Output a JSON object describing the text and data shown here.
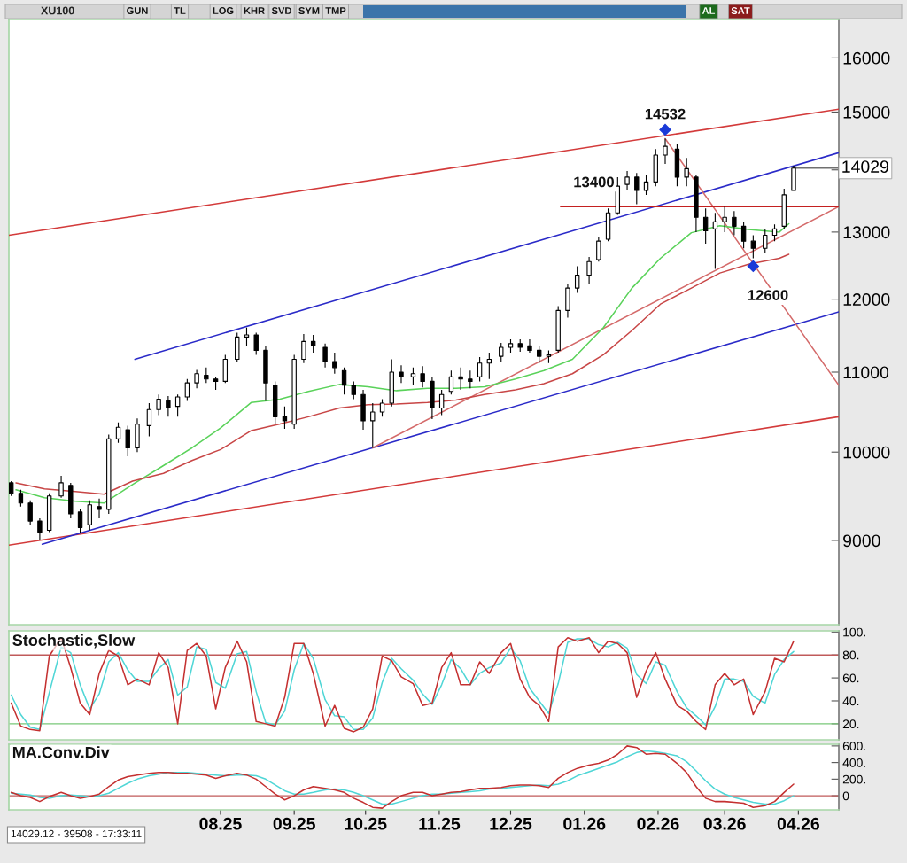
{
  "chart_data": [
    {
      "type": "candlestick",
      "title": "XU100",
      "log": true,
      "tick_labels": "y",
      "color": "#000000",
      "x": [
        "2025-05-19",
        "2025-05-23",
        "2025-05-27",
        "2025-05-31",
        "2025-06-04",
        "2025-06-09",
        "2025-06-13",
        "2025-06-17",
        "2025-06-21",
        "2025-06-25",
        "2025-06-29",
        "2025-07-03",
        "2025-07-07",
        "2025-07-11",
        "2025-07-16",
        "2025-07-20",
        "2025-07-24",
        "2025-07-28",
        "2025-08-01",
        "2025-08-05",
        "2025-08-09",
        "2025-08-13",
        "2025-08-17",
        "2025-08-22",
        "2025-08-26",
        "2025-08-30",
        "2025-09-03",
        "2025-09-07",
        "2025-09-11",
        "2025-09-15",
        "2025-09-19",
        "2025-09-23",
        "2025-09-28",
        "2025-10-02",
        "2025-10-06",
        "2025-10-10",
        "2025-10-14",
        "2025-10-18",
        "2025-10-22",
        "2025-10-26",
        "2025-10-30",
        "2025-11-04",
        "2025-11-08",
        "2025-11-12",
        "2025-11-16",
        "2025-11-20",
        "2025-11-24",
        "2025-11-28",
        "2025-12-02",
        "2025-12-06",
        "2025-12-11",
        "2025-12-15",
        "2025-12-19",
        "2025-12-23",
        "2025-12-27",
        "2025-12-31",
        "2026-01-04",
        "2026-01-08",
        "2026-01-12",
        "2026-01-17",
        "2026-01-21",
        "2026-01-25",
        "2026-01-29",
        "2026-02-02",
        "2026-02-06",
        "2026-02-10",
        "2026-02-14",
        "2026-02-18",
        "2026-02-23",
        "2026-02-27",
        "2026-03-03",
        "2026-03-07",
        "2026-03-11",
        "2026-03-15",
        "2026-03-19",
        "2026-03-23",
        "2026-03-27",
        "2026-04-01",
        "2026-04-05",
        "2026-04-09",
        "2026-04-13"
      ],
      "ohlc": [
        [
          9640,
          9660,
          9490,
          9520
        ],
        [
          9520,
          9560,
          9370,
          9410
        ],
        [
          9410,
          9440,
          9170,
          9210
        ],
        [
          9210,
          9240,
          9000,
          9090
        ],
        [
          9110,
          9520,
          9090,
          9490
        ],
        [
          9490,
          9720,
          9470,
          9640
        ],
        [
          9610,
          9640,
          9240,
          9290
        ],
        [
          9310,
          9340,
          9080,
          9140
        ],
        [
          9170,
          9440,
          9110,
          9390
        ],
        [
          9370,
          9460,
          9240,
          9340
        ],
        [
          9340,
          10210,
          9290,
          10160
        ],
        [
          10160,
          10360,
          10110,
          10300
        ],
        [
          10270,
          10320,
          9950,
          10050
        ],
        [
          10050,
          10410,
          10000,
          10340
        ],
        [
          10320,
          10600,
          10190,
          10520
        ],
        [
          10520,
          10710,
          10450,
          10650
        ],
        [
          10630,
          10690,
          10430,
          10540
        ],
        [
          10560,
          10710,
          10430,
          10680
        ],
        [
          10680,
          10910,
          10630,
          10860
        ],
        [
          10860,
          11030,
          10790,
          10980
        ],
        [
          10960,
          11060,
          10860,
          10910
        ],
        [
          10910,
          10940,
          10770,
          10880
        ],
        [
          10880,
          11230,
          10860,
          11170
        ],
        [
          11170,
          11530,
          11140,
          11470
        ],
        [
          11470,
          11600,
          11350,
          11500
        ],
        [
          11500,
          11530,
          11230,
          11290
        ],
        [
          11290,
          11350,
          10630,
          10860
        ],
        [
          10830,
          10880,
          10340,
          10430
        ],
        [
          10430,
          10560,
          10280,
          10380
        ],
        [
          10340,
          11230,
          10280,
          11170
        ],
        [
          11170,
          11510,
          11120,
          11410
        ],
        [
          11410,
          11500,
          11260,
          11350
        ],
        [
          11330,
          11380,
          11060,
          11140
        ],
        [
          11140,
          11260,
          10980,
          11060
        ],
        [
          11020,
          11060,
          10710,
          10830
        ],
        [
          10830,
          10880,
          10650,
          10710
        ],
        [
          10710,
          10770,
          10270,
          10380
        ],
        [
          10380,
          10600,
          10050,
          10490
        ],
        [
          10490,
          10650,
          10430,
          10600
        ],
        [
          10600,
          11170,
          10560,
          11000
        ],
        [
          11000,
          11090,
          10860,
          10940
        ],
        [
          10940,
          11060,
          10830,
          10980
        ],
        [
          10980,
          11080,
          10800,
          10880
        ],
        [
          10880,
          10940,
          10400,
          10540
        ],
        [
          10540,
          10770,
          10450,
          10710
        ],
        [
          10750,
          11020,
          10710,
          10940
        ],
        [
          10940,
          11060,
          10770,
          10910
        ],
        [
          10910,
          11020,
          10790,
          10880
        ],
        [
          10940,
          11200,
          10880,
          11120
        ],
        [
          11120,
          11260,
          10910,
          11170
        ],
        [
          11210,
          11390,
          11140,
          11330
        ],
        [
          11330,
          11440,
          11260,
          11380
        ],
        [
          11380,
          11440,
          11270,
          11330
        ],
        [
          11350,
          11440,
          11260,
          11290
        ],
        [
          11290,
          11350,
          11120,
          11210
        ],
        [
          11210,
          11290,
          11120,
          11230
        ],
        [
          11290,
          11900,
          11260,
          11840
        ],
        [
          11840,
          12220,
          11740,
          12160
        ],
        [
          12160,
          12480,
          12090,
          12350
        ],
        [
          12350,
          12620,
          12220,
          12550
        ],
        [
          12580,
          12930,
          12550,
          12860
        ],
        [
          12890,
          13370,
          12860,
          13300
        ],
        [
          13300,
          13880,
          13270,
          13730
        ],
        [
          13760,
          13980,
          13660,
          13880
        ],
        [
          13880,
          13950,
          13440,
          13660
        ],
        [
          13660,
          13910,
          13590,
          13800
        ],
        [
          13800,
          14350,
          13730,
          14250
        ],
        [
          14250,
          14532,
          14100,
          14400
        ],
        [
          14350,
          14430,
          13730,
          13880
        ],
        [
          13880,
          14200,
          13730,
          14020
        ],
        [
          13880,
          13910,
          13000,
          13230
        ],
        [
          13230,
          13370,
          12820,
          13020
        ],
        [
          13050,
          13300,
          12440,
          13160
        ],
        [
          13160,
          13400,
          13000,
          13230
        ],
        [
          13230,
          13330,
          12950,
          13090
        ],
        [
          13090,
          13160,
          12750,
          12860
        ],
        [
          12860,
          12950,
          12600,
          12750
        ],
        [
          12750,
          13050,
          12680,
          12950
        ],
        [
          12950,
          13120,
          12860,
          13050
        ],
        [
          13090,
          13690,
          13050,
          13590
        ],
        [
          13660,
          14070,
          13660,
          14029
        ]
      ],
      "series": [
        {
          "type": "line",
          "color": "#d33a3a",
          "x": [
            "2025-05-18",
            "2026-05-02"
          ],
          "values": [
            12950,
            15050
          ]
        },
        {
          "type": "line",
          "color": "#d33a3a",
          "x": [
            "2025-05-18",
            "2026-05-02"
          ],
          "values": [
            8950,
            10430
          ]
        },
        {
          "type": "line",
          "color": "#2a2ac8",
          "x": [
            "2025-06-01",
            "2026-05-02"
          ],
          "values": [
            8960,
            11820
          ]
        },
        {
          "type": "line",
          "color": "#2a2ac8",
          "x": [
            "2025-07-10",
            "2026-05-02"
          ],
          "values": [
            11170,
            14290
          ]
        },
        {
          "type": "line",
          "color": "#d46a6a",
          "x": [
            "2026-02-18",
            "2026-05-02"
          ],
          "values": [
            14532,
            10830
          ]
        },
        {
          "type": "line",
          "color": "#d46a6a",
          "x": [
            "2025-10-18",
            "2026-05-02"
          ],
          "values": [
            10050,
            13400
          ]
        },
        {
          "type": "line",
          "color": "#c42020",
          "x": [
            "2026-01-05",
            "2026-05-02"
          ],
          "values": [
            13400,
            13400
          ]
        },
        {
          "type": "line",
          "color": "#5ad25a",
          "x": [
            "2025-05-21",
            "2025-06-02",
            "2025-06-15",
            "2025-06-27",
            "2025-07-09",
            "2025-07-22",
            "2025-08-03",
            "2025-08-15",
            "2025-08-28",
            "2025-09-09",
            "2025-09-21",
            "2025-10-04",
            "2025-10-16",
            "2025-10-28",
            "2025-11-10",
            "2025-11-22",
            "2025-12-04",
            "2025-12-17",
            "2025-12-29",
            "2026-01-10",
            "2026-01-23",
            "2026-02-04",
            "2026-02-16",
            "2026-03-01",
            "2026-03-13",
            "2026-03-25",
            "2026-04-07",
            "2026-04-11"
          ],
          "values": [
            9560,
            9470,
            9430,
            9410,
            9620,
            9840,
            10050,
            10290,
            10610,
            10650,
            10750,
            10840,
            10810,
            10760,
            10790,
            10790,
            10810,
            10910,
            11020,
            11170,
            11600,
            12160,
            12600,
            12990,
            13100,
            13040,
            13000,
            13130
          ]
        },
        {
          "type": "line",
          "color": "#c84646",
          "x": [
            "2025-05-21",
            "2025-06-02",
            "2025-06-15",
            "2025-06-27",
            "2025-07-09",
            "2025-07-22",
            "2025-08-03",
            "2025-08-15",
            "2025-08-28",
            "2025-09-09",
            "2025-09-21",
            "2025-10-04",
            "2025-10-16",
            "2025-10-28",
            "2025-11-10",
            "2025-11-22",
            "2025-12-04",
            "2025-12-17",
            "2025-12-29",
            "2026-01-10",
            "2026-01-23",
            "2026-02-04",
            "2026-02-16",
            "2026-03-01",
            "2026-03-13",
            "2026-03-25",
            "2026-04-07",
            "2026-04-11"
          ],
          "values": [
            9640,
            9570,
            9540,
            9510,
            9660,
            9750,
            9900,
            10030,
            10260,
            10340,
            10430,
            10540,
            10580,
            10590,
            10610,
            10640,
            10710,
            10770,
            10850,
            10980,
            11230,
            11560,
            11930,
            12160,
            12380,
            12510,
            12600,
            12660
          ]
        }
      ],
      "xlim": [
        "2025-05-18",
        "2026-05-02"
      ],
      "ylim": [
        8140,
        16750
      ],
      "yticks": [
        9000,
        10000,
        11000,
        12000,
        13000,
        {
          "value": 14000,
          "label": null
        },
        15000,
        16000
      ],
      "annotations": [
        "GUN",
        "TL",
        "LOG",
        "KHR",
        "SVD",
        "SYM",
        "TMP",
        "AL",
        "SAT",
        {
          "text": "14532",
          "x": "2026-02-18",
          "y": 14532
        },
        {
          "text": "13400",
          "x": "2026-01-19",
          "y": 13400
        },
        {
          "text": "12600",
          "x": "2026-03-27",
          "y": 12600
        },
        {
          "text": "14029",
          "x": "2026-04-13",
          "y": 14029
        }
      ]
    },
    {
      "type": "line",
      "title": "Stochastic,Slow",
      "tick_labels": "y",
      "x": [
        "2025-05-19",
        "2025-05-23",
        "2025-05-27",
        "2025-05-31",
        "2025-06-04",
        "2025-06-09",
        "2025-06-13",
        "2025-06-17",
        "2025-06-21",
        "2025-06-25",
        "2025-06-29",
        "2025-07-03",
        "2025-07-07",
        "2025-07-11",
        "2025-07-16",
        "2025-07-20",
        "2025-07-24",
        "2025-07-28",
        "2025-08-01",
        "2025-08-05",
        "2025-08-09",
        "2025-08-13",
        "2025-08-17",
        "2025-08-22",
        "2025-08-26",
        "2025-08-30",
        "2025-09-03",
        "2025-09-07",
        "2025-09-11",
        "2025-09-15",
        "2025-09-19",
        "2025-09-23",
        "2025-09-28",
        "2025-10-02",
        "2025-10-06",
        "2025-10-10",
        "2025-10-14",
        "2025-10-18",
        "2025-10-22",
        "2025-10-26",
        "2025-10-30",
        "2025-11-04",
        "2025-11-08",
        "2025-11-12",
        "2025-11-16",
        "2025-11-20",
        "2025-11-24",
        "2025-11-28",
        "2025-12-02",
        "2025-12-06",
        "2025-12-11",
        "2025-12-15",
        "2025-12-19",
        "2025-12-23",
        "2025-12-27",
        "2025-12-31",
        "2026-01-04",
        "2026-01-08",
        "2026-01-12",
        "2026-01-17",
        "2026-01-21",
        "2026-01-25",
        "2026-01-29",
        "2026-02-02",
        "2026-02-06",
        "2026-02-10",
        "2026-02-14",
        "2026-02-18",
        "2026-02-23",
        "2026-02-27",
        "2026-03-03",
        "2026-03-07",
        "2026-03-11",
        "2026-03-15",
        "2026-03-19",
        "2026-03-23",
        "2026-03-27",
        "2026-04-01",
        "2026-04-05",
        "2026-04-09",
        "2026-04-13"
      ],
      "series": [
        {
          "color": "#4fd6d6",
          "values": [
            45,
            28,
            17,
            15,
            47,
            87,
            82,
            54,
            33,
            46,
            74,
            82,
            67,
            57,
            57,
            68,
            76,
            45,
            52,
            87,
            85,
            56,
            51,
            81,
            83,
            48,
            21,
            19,
            31,
            67,
            90,
            77,
            41,
            27,
            26,
            15,
            15,
            25,
            56,
            77,
            68,
            58,
            46,
            37,
            54,
            76,
            68,
            54,
            64,
            69,
            73,
            86,
            75,
            51,
            40,
            29,
            55,
            91,
            94,
            94,
            89,
            87,
            91,
            86,
            63,
            55,
            74,
            71,
            48,
            34,
            27,
            19,
            35,
            59,
            59,
            57,
            44,
            38,
            63,
            76,
            83
          ]
        },
        {
          "color": "#c43030",
          "values": [
            38,
            18,
            15,
            14,
            79,
            95,
            69,
            38,
            28,
            64,
            84,
            79,
            54,
            59,
            54,
            82,
            69,
            20,
            84,
            90,
            79,
            33,
            69,
            92,
            74,
            22,
            20,
            18,
            43,
            90,
            90,
            64,
            18,
            36,
            16,
            13,
            17,
            33,
            79,
            75,
            61,
            55,
            36,
            38,
            69,
            82,
            54,
            54,
            74,
            64,
            82,
            90,
            59,
            43,
            36,
            22,
            87,
            95,
            92,
            95,
            82,
            92,
            90,
            82,
            43,
            66,
            82,
            59,
            36,
            31,
            22,
            15,
            54,
            64,
            54,
            59,
            28,
            48,
            77,
            74,
            92
          ]
        }
      ],
      "xlim": [
        "2025-05-18",
        "2026-05-02"
      ],
      "ylim": [
        6,
        101
      ],
      "yticks": [
        {
          "value": 20,
          "label": "20."
        },
        {
          "value": 40,
          "label": "40."
        },
        {
          "value": 60,
          "label": "60."
        },
        {
          "value": 80,
          "label": "80."
        },
        {
          "value": 100,
          "label": "100."
        }
      ],
      "ref_lines": [
        {
          "axis": "y",
          "value": 80,
          "color": "#c05a5a"
        },
        {
          "axis": "y",
          "value": 20,
          "color": "#78c878"
        }
      ]
    },
    {
      "type": "line",
      "title": "MA.Conv.Div",
      "x": [
        "2025-05-19",
        "2025-05-23",
        "2025-05-27",
        "2025-05-31",
        "2025-06-04",
        "2025-06-09",
        "2025-06-13",
        "2025-06-17",
        "2025-06-21",
        "2025-06-25",
        "2025-06-29",
        "2025-07-03",
        "2025-07-07",
        "2025-07-11",
        "2025-07-16",
        "2025-07-20",
        "2025-07-24",
        "2025-07-28",
        "2025-08-01",
        "2025-08-05",
        "2025-08-09",
        "2025-08-13",
        "2025-08-17",
        "2025-08-22",
        "2025-08-26",
        "2025-08-30",
        "2025-09-03",
        "2025-09-07",
        "2025-09-11",
        "2025-09-15",
        "2025-09-19",
        "2025-09-23",
        "2025-09-28",
        "2025-10-02",
        "2025-10-06",
        "2025-10-10",
        "2025-10-14",
        "2025-10-18",
        "2025-10-22",
        "2025-10-26",
        "2025-10-30",
        "2025-11-04",
        "2025-11-08",
        "2025-11-12",
        "2025-11-16",
        "2025-11-20",
        "2025-11-24",
        "2025-11-28",
        "2025-12-02",
        "2025-12-06",
        "2025-12-11",
        "2025-12-15",
        "2025-12-19",
        "2025-12-23",
        "2025-12-27",
        "2025-12-31",
        "2026-01-04",
        "2026-01-08",
        "2026-01-12",
        "2026-01-17",
        "2026-01-21",
        "2026-01-25",
        "2026-01-29",
        "2026-02-02",
        "2026-02-06",
        "2026-02-10",
        "2026-02-14",
        "2026-02-18",
        "2026-02-23",
        "2026-02-27",
        "2026-03-03",
        "2026-03-07",
        "2026-03-11",
        "2026-03-15",
        "2026-03-19",
        "2026-03-23",
        "2026-03-27",
        "2026-04-01",
        "2026-04-05",
        "2026-04-09",
        "2026-04-13"
      ],
      "series": [
        {
          "color": "#4fd6d6",
          "values": [
            30,
            20,
            10,
            -20,
            -30,
            0,
            10,
            0,
            -10,
            0,
            30,
            90,
            150,
            200,
            240,
            260,
            280,
            280,
            280,
            270,
            260,
            250,
            240,
            250,
            250,
            240,
            200,
            130,
            60,
            20,
            20,
            40,
            70,
            80,
            70,
            40,
            0,
            -50,
            -100,
            -100,
            -70,
            -30,
            0,
            20,
            20,
            30,
            40,
            50,
            60,
            80,
            90,
            100,
            110,
            120,
            130,
            120,
            140,
            180,
            240,
            290,
            330,
            370,
            410,
            470,
            520,
            540,
            530,
            510,
            480,
            410,
            300,
            180,
            80,
            20,
            -20,
            -50,
            -80,
            -100,
            -100,
            -60,
            0
          ]
        },
        {
          "color": "#c43030",
          "values": [
            40,
            0,
            -20,
            -70,
            -10,
            40,
            0,
            -30,
            -10,
            20,
            110,
            190,
            230,
            250,
            270,
            280,
            280,
            270,
            270,
            260,
            250,
            210,
            240,
            270,
            250,
            200,
            110,
            20,
            -50,
            0,
            70,
            110,
            90,
            70,
            40,
            -30,
            -80,
            -140,
            -150,
            -70,
            0,
            40,
            40,
            0,
            20,
            40,
            50,
            70,
            90,
            90,
            100,
            120,
            130,
            130,
            120,
            100,
            210,
            280,
            330,
            370,
            390,
            430,
            500,
            600,
            580,
            500,
            510,
            500,
            390,
            280,
            110,
            -30,
            -70,
            -70,
            -80,
            -90,
            -140,
            -120,
            -70,
            40,
            140
          ]
        }
      ],
      "xlim": [
        "2025-05-18",
        "2026-05-02"
      ],
      "ylim": [
        -170,
        620
      ],
      "yticks": [
        {
          "value": 0,
          "label": "0"
        },
        {
          "value": 200,
          "label": "200."
        },
        {
          "value": 400,
          "label": "400."
        },
        {
          "value": 600,
          "label": "600."
        }
      ],
      "xticks": [
        {
          "value": "2025-08-15",
          "label": "08.25"
        },
        {
          "value": "2025-09-15",
          "label": "09.25"
        },
        {
          "value": "2025-10-15",
          "label": "10.25"
        },
        {
          "value": "2025-11-15",
          "label": "11.25"
        },
        {
          "value": "2025-12-15",
          "label": "12.25"
        },
        {
          "value": "2026-01-15",
          "label": "01.26"
        },
        {
          "value": "2026-02-15",
          "label": "02.26"
        },
        {
          "value": "2026-03-15",
          "label": "03.26"
        },
        {
          "value": "2026-04-15",
          "label": "04.26"
        }
      ],
      "ref_lines": [
        {
          "axis": "y",
          "value": 0,
          "color": "#c05a5a"
        }
      ],
      "annotations": [
        "14029.12 - 39508 - 17:33:11"
      ]
    }
  ]
}
